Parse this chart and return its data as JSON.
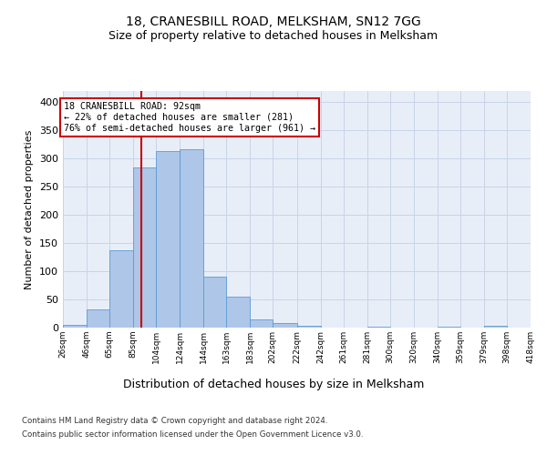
{
  "title1": "18, CRANESBILL ROAD, MELKSHAM, SN12 7GG",
  "title2": "Size of property relative to detached houses in Melksham",
  "xlabel": "Distribution of detached houses by size in Melksham",
  "ylabel": "Number of detached properties",
  "footnote1": "Contains HM Land Registry data © Crown copyright and database right 2024.",
  "footnote2": "Contains public sector information licensed under the Open Government Licence v3.0.",
  "bin_edges": [
    26,
    46,
    65,
    85,
    104,
    124,
    144,
    163,
    183,
    202,
    222,
    242,
    261,
    281,
    300,
    320,
    340,
    359,
    379,
    398,
    418
  ],
  "bar_heights": [
    5,
    33,
    138,
    284,
    313,
    317,
    90,
    55,
    15,
    8,
    3,
    0,
    0,
    1,
    0,
    0,
    1,
    0,
    3,
    0
  ],
  "bar_color": "#aec6e8",
  "bar_edge_color": "#5b9bd5",
  "grid_color": "#c8d4e8",
  "background_color": "#e8eef8",
  "red_line_x": 92,
  "annotation_text": "18 CRANESBILL ROAD: 92sqm\n← 22% of detached houses are smaller (281)\n76% of semi-detached houses are larger (961) →",
  "annotation_box_color": "#ffffff",
  "annotation_border_color": "#cc0000",
  "ylim": [
    0,
    420
  ],
  "yticks": [
    0,
    50,
    100,
    150,
    200,
    250,
    300,
    350,
    400
  ]
}
